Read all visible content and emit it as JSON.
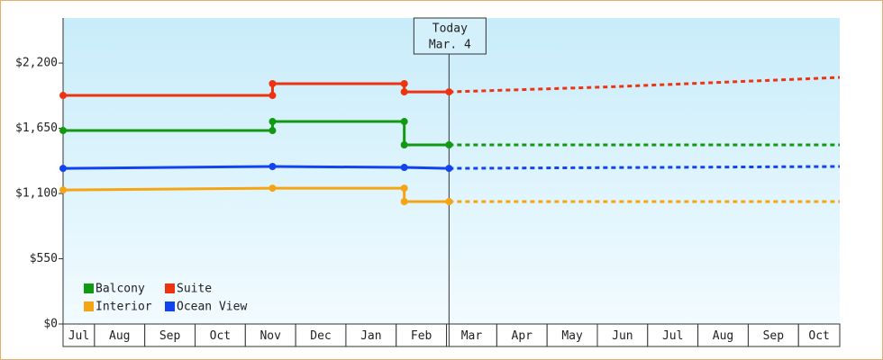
{
  "chart_data": {
    "type": "line",
    "categories": [
      "Jul",
      "Aug",
      "Sep",
      "Oct",
      "Nov",
      "Dec",
      "Jan",
      "Feb",
      "Mar",
      "Apr",
      "May",
      "Jun",
      "Jul",
      "Aug",
      "Sep",
      "Oct"
    ],
    "xlim": [
      0.375,
      15.82
    ],
    "ylim": [
      0,
      2580
    ],
    "yticks": [
      {
        "value": 0,
        "label": "$0"
      },
      {
        "value": 550,
        "label": "$550"
      },
      {
        "value": 1100,
        "label": "$1,100"
      },
      {
        "value": 1650,
        "label": "$1,650"
      },
      {
        "value": 2200,
        "label": "$2,200"
      }
    ],
    "today": {
      "x": 8.05,
      "label": "Today",
      "date": "Mar. 4"
    },
    "series": [
      {
        "name": "Balcony",
        "color": "#119911",
        "x": [
          0.375,
          4.54,
          4.54,
          7.16,
          7.16,
          8.05
        ],
        "values": [
          1631,
          1631,
          1707,
          1707,
          1510,
          1510
        ],
        "forecast_x": [
          8.05,
          15.82
        ],
        "forecast_values": [
          1510,
          1510
        ]
      },
      {
        "name": "Suite",
        "color": "#ee3311",
        "x": [
          0.375,
          4.54,
          4.54,
          7.16,
          7.16,
          8.05
        ],
        "values": [
          1927,
          1927,
          2026,
          2026,
          1957,
          1957
        ],
        "forecast_x": [
          8.05,
          11.3,
          15.82
        ],
        "forecast_values": [
          1957,
          2000,
          2079
        ]
      },
      {
        "name": "Interior",
        "color": "#f5a511",
        "x": [
          0.375,
          4.54,
          7.16,
          7.16,
          8.05
        ],
        "values": [
          1130,
          1145,
          1145,
          1032,
          1032
        ],
        "forecast_x": [
          8.05,
          15.82
        ],
        "forecast_values": [
          1032,
          1032
        ]
      },
      {
        "name": "Ocean View",
        "color": "#1144ee",
        "x": [
          0.375,
          4.54,
          7.16,
          8.05
        ],
        "values": [
          1312,
          1328,
          1320,
          1312
        ],
        "forecast_x": [
          8.05,
          15.82
        ],
        "forecast_values": [
          1312,
          1328
        ]
      }
    ]
  }
}
